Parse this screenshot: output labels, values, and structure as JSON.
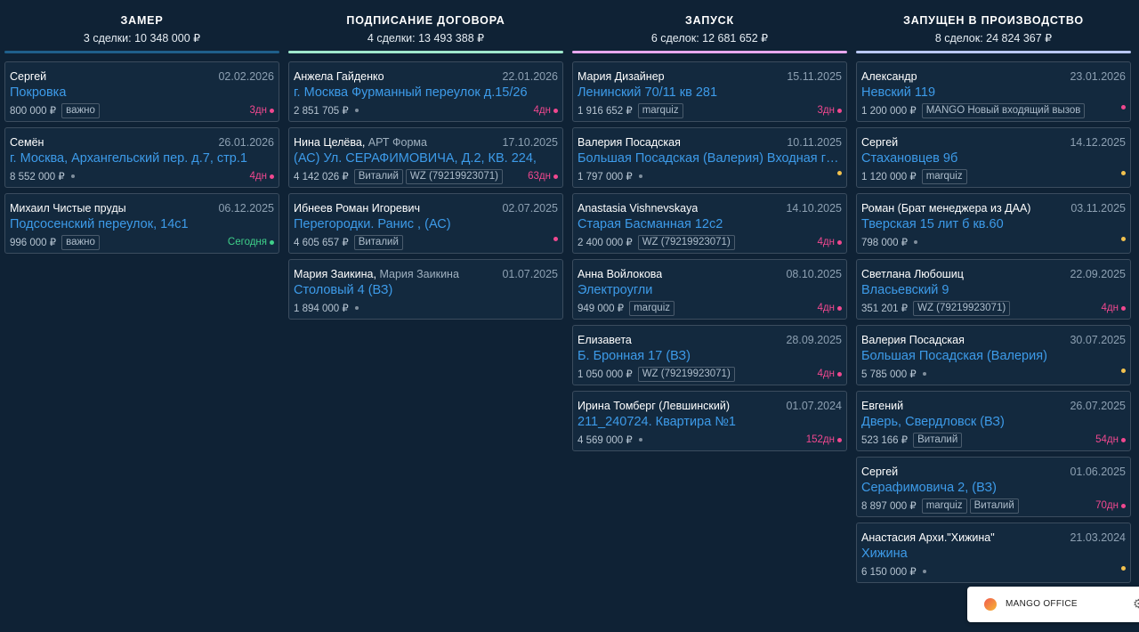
{
  "columns": [
    {
      "title": "ЗАМЕР",
      "summary": "3 сделки: 10 348 000 ₽",
      "accent": "#1f5f8b",
      "cards": [
        {
          "name": "Сергей",
          "company": "",
          "date": "02.02.2026",
          "title": "Покровка",
          "price": "800 000 ₽",
          "tags": [
            "важно"
          ],
          "age": "3дн",
          "status_color": "#f0488f"
        },
        {
          "name": "Семён",
          "company": "",
          "date": "26.01.2026",
          "title": "г. Москва, Архангельский пер. д.7, стр.1",
          "price": "8 552 000 ₽",
          "tags": [],
          "age": "4дн",
          "status_color": "#f0488f"
        },
        {
          "name": "Михаил Чистые пруды",
          "company": "",
          "date": "06.12.2025",
          "title": "Подсосенский переулок, 14с1",
          "price": "996 000 ₽",
          "tags": [
            "важно"
          ],
          "age": "Сегодня",
          "status_color": "#3fd08a"
        }
      ]
    },
    {
      "title": "ПОДПИСАНИЕ ДОГОВОРА",
      "summary": "4 сделки: 13 493 388 ₽",
      "accent": "#9fe8cc",
      "cards": [
        {
          "name": "Анжела Гайденко",
          "company": "",
          "date": "22.01.2026",
          "title": "г. Москва Фурманный переулок д.15/26",
          "price": "2 851 705 ₽",
          "tags": [],
          "age": "4дн",
          "status_color": "#f0488f"
        },
        {
          "name": "Нина Целёва",
          "company": "АРТ Форма",
          "date": "17.10.2025",
          "title": "(АС) Ул. СЕРАФИМОВИЧА, Д.2, КВ. 224,",
          "price": "4 142 026 ₽",
          "tags": [
            "Виталий",
            "WZ (79219923071)"
          ],
          "age": "63дн",
          "status_color": "#f0488f"
        },
        {
          "name": "Ибнеев Роман Игоревич",
          "company": "",
          "date": "02.07.2025",
          "title": "Перегородки. Ранис , (АС)",
          "price": "4 605 657 ₽",
          "tags": [
            "Виталий"
          ],
          "age": "",
          "status_color": "#f0488f"
        },
        {
          "name": "Мария Заикина",
          "company": "Мария Заикина",
          "date": "01.07.2025",
          "title": "Столовый 4 (ВЗ)",
          "price": "1 894 000 ₽",
          "tags": [],
          "age": "",
          "status_color": ""
        }
      ]
    },
    {
      "title": "ЗАПУСК",
      "summary": "6 сделок: 12 681 652 ₽",
      "accent": "#e7a7ee",
      "cards": [
        {
          "name": "Мария Дизайнер",
          "company": "",
          "date": "15.11.2025",
          "title": "Ленинский 70/11 кв 281",
          "price": "1 916 652 ₽",
          "tags": [
            "marquiz"
          ],
          "age": "3дн",
          "status_color": "#f0488f"
        },
        {
          "name": "Валерия Посадская",
          "company": "",
          "date": "10.11.2025",
          "title": "Большая Посадская (Валерия) Входная группа",
          "price": "1 797 000 ₽",
          "tags": [],
          "age": "",
          "status_color": "#f2c14e"
        },
        {
          "name": "Anastasia Vishnevskaya",
          "company": "",
          "date": "14.10.2025",
          "title": "Старая Басманная 12с2",
          "price": "2 400 000 ₽",
          "tags": [
            "WZ (79219923071)"
          ],
          "age": "4дн",
          "status_color": "#f0488f"
        },
        {
          "name": "Анна Войлокова",
          "company": "",
          "date": "08.10.2025",
          "title": "Электроугли",
          "price": "949 000 ₽",
          "tags": [
            "marquiz"
          ],
          "age": "4дн",
          "status_color": "#f0488f"
        },
        {
          "name": "Елизавета",
          "company": "",
          "date": "28.09.2025",
          "title": "Б. Бронная 17 (ВЗ)",
          "price": "1 050 000 ₽",
          "tags": [
            "WZ (79219923071)"
          ],
          "age": "4дн",
          "status_color": "#f0488f"
        },
        {
          "name": "Ирина Томберг (Левшинский)",
          "company": "",
          "date": "01.07.2024",
          "title": "211_240724. Квартира №1",
          "price": "4 569 000 ₽",
          "tags": [],
          "age": "152дн",
          "status_color": "#f0488f"
        }
      ]
    },
    {
      "title": "ЗАПУЩЕН В ПРОИЗВОДСТВО",
      "summary": "8 сделок: 24 824 367 ₽",
      "accent": "#b9c8f5",
      "cards": [
        {
          "name": "Александр",
          "company": "",
          "date": "23.01.2026",
          "title": "Невский 119",
          "price": "1 200 000 ₽",
          "tags": [
            "MANGO Новый входящий вызов"
          ],
          "age": "",
          "status_color": "#f0488f"
        },
        {
          "name": "Сергей",
          "company": "",
          "date": "14.12.2025",
          "title": "Стахановцев 9б",
          "price": "1 120 000 ₽",
          "tags": [
            "marquiz"
          ],
          "age": "",
          "status_color": "#f2c14e"
        },
        {
          "name": "Роман (Брат менеджера из ДАА)",
          "company": "",
          "date": "03.11.2025",
          "title": "Тверская 15 лит б кв.60",
          "price": "798 000 ₽",
          "tags": [],
          "age": "",
          "status_color": "#f2c14e"
        },
        {
          "name": "Светлана Любошиц",
          "company": "",
          "date": "22.09.2025",
          "title": "Власьевский 9",
          "price": "351 201 ₽",
          "tags": [
            "WZ (79219923071)"
          ],
          "age": "4дн",
          "status_color": "#f0488f"
        },
        {
          "name": "Валерия Посадская",
          "company": "",
          "date": "30.07.2025",
          "title": "Большая Посадская (Валерия)",
          "price": "5 785 000 ₽",
          "tags": [],
          "age": "",
          "status_color": "#f2c14e"
        },
        {
          "name": "Евгений",
          "company": "",
          "date": "26.07.2025",
          "title": "Дверь, Свердловск (ВЗ)",
          "price": "523 166 ₽",
          "tags": [
            "Виталий"
          ],
          "age": "54дн",
          "status_color": "#f0488f"
        },
        {
          "name": "Сергей",
          "company": "",
          "date": "01.06.2025",
          "title": "Серафимовича 2, (ВЗ)",
          "price": "8 897 000 ₽",
          "tags": [
            "marquiz",
            "Виталий"
          ],
          "age": "70дн",
          "status_color": "#f0488f"
        },
        {
          "name": "Анастасия Архи.\"Хижина\"",
          "company": "",
          "date": "21.03.2024",
          "title": "Хижина",
          "price": "6 150 000 ₽",
          "tags": [],
          "age": "",
          "status_color": "#f2c14e"
        }
      ]
    }
  ],
  "widget": {
    "label": "MANGO OFFICE",
    "logo_icon": "mango-logo-icon",
    "settings_icon": "gear-icon"
  }
}
